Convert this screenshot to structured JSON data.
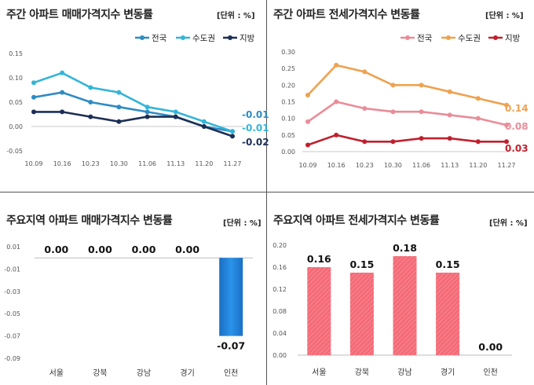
{
  "chart_data": [
    {
      "type": "line",
      "title": "주간 아파트 매매가격지수 변동률",
      "unit": "[단위 : %]",
      "categories": [
        "10.09",
        "10.16",
        "10.23",
        "10.30",
        "11.06",
        "11.13",
        "11.20",
        "11.27"
      ],
      "ylim": [
        -0.05,
        0.15
      ],
      "yticks": [
        "0.15",
        "0.10",
        "0.05",
        "0.00",
        "-0.05"
      ],
      "legend_position": "top-right",
      "series": [
        {
          "name": "전국",
          "color": "#2f8bc4",
          "values": [
            0.06,
            0.07,
            0.05,
            0.04,
            0.03,
            0.02,
            0.0,
            -0.01
          ],
          "end_label": "-0.01"
        },
        {
          "name": "수도권",
          "color": "#33b5d8",
          "values": [
            0.09,
            0.11,
            0.08,
            0.07,
            0.04,
            0.03,
            0.01,
            -0.01
          ],
          "end_label": "-0.01"
        },
        {
          "name": "지방",
          "color": "#1c2f55",
          "values": [
            0.03,
            0.03,
            0.02,
            0.01,
            0.02,
            0.02,
            0.0,
            -0.02
          ],
          "end_label": "-0.02"
        }
      ]
    },
    {
      "type": "line",
      "title": "주간 아파트 전세가격지수 변동률",
      "unit": "[단위 : %]",
      "categories": [
        "10.09",
        "10.16",
        "10.23",
        "10.30",
        "11.06",
        "11.13",
        "11.20",
        "11.27"
      ],
      "ylim": [
        0,
        0.3
      ],
      "yticks": [
        "0.30",
        "0.25",
        "0.20",
        "0.15",
        "0.10",
        "0.05",
        "0.00"
      ],
      "legend_position": "top-right",
      "series": [
        {
          "name": "전국",
          "color": "#ea8c98",
          "values": [
            0.09,
            0.15,
            0.13,
            0.12,
            0.12,
            0.11,
            0.1,
            0.08
          ],
          "end_label": "0.08"
        },
        {
          "name": "수도권",
          "color": "#eea250",
          "values": [
            0.17,
            0.26,
            0.24,
            0.2,
            0.2,
            0.18,
            0.16,
            0.14
          ],
          "end_label": "0.14"
        },
        {
          "name": "지방",
          "color": "#c0202d",
          "values": [
            0.02,
            0.05,
            0.03,
            0.03,
            0.04,
            0.04,
            0.03,
            0.03
          ],
          "end_label": "0.03"
        }
      ]
    },
    {
      "type": "bar",
      "title": "주요지역 아파트 매매가격지수 변동률",
      "unit": "[단위 : %]",
      "categories": [
        "서울",
        "강북",
        "강남",
        "경기",
        "인천"
      ],
      "values": [
        0.0,
        0.0,
        0.0,
        0.0,
        -0.07
      ],
      "value_labels": [
        "0.00",
        "0.00",
        "0.00",
        "0.00",
        "-0.07"
      ],
      "ylim": [
        -0.09,
        0.01
      ],
      "yticks": [
        "0.01",
        "-0.01",
        "-0.03",
        "-0.05",
        "-0.07",
        "-0.09"
      ],
      "color": "#1c7fd6"
    },
    {
      "type": "bar",
      "title": "주요지역 아파트 전세가격지수 변동률",
      "unit": "[단위 : %]",
      "categories": [
        "서울",
        "강북",
        "강남",
        "경기",
        "인천"
      ],
      "values": [
        0.16,
        0.15,
        0.18,
        0.15,
        0.0
      ],
      "value_labels": [
        "0.16",
        "0.15",
        "0.18",
        "0.15",
        "0.00"
      ],
      "ylim": [
        0,
        0.2
      ],
      "yticks": [
        "0.20",
        "0.16",
        "0.12",
        "0.08",
        "0.04",
        "0.00"
      ],
      "color": "#f46b77"
    }
  ]
}
